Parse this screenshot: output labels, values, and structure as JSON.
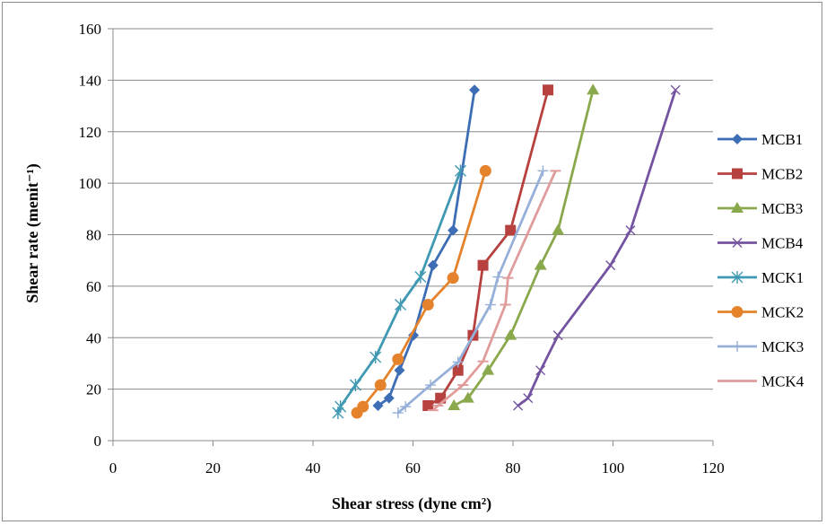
{
  "chart_data": {
    "type": "line",
    "title": "",
    "xlabel": "Shear stress (dyne cm²)",
    "ylabel": "Shear rate (menit⁻¹)",
    "xlim": [
      0,
      120
    ],
    "ylim": [
      0,
      160
    ],
    "xticks": [
      "0",
      "20",
      "40",
      "60",
      "80",
      "100",
      "120"
    ],
    "yticks": [
      "0",
      "20",
      "40",
      "60",
      "80",
      "100",
      "120",
      "140",
      "160"
    ],
    "grid": "horizontal",
    "legend": "right",
    "series": [
      {
        "name": "MCB1",
        "color": "#3d6db5",
        "marker": "diamond",
        "points": [
          [
            53.0,
            13.6
          ],
          [
            55.2,
            16.5
          ],
          [
            57.3,
            27.3
          ],
          [
            60.1,
            40.9
          ],
          [
            64.0,
            68.1
          ],
          [
            68.0,
            81.7
          ],
          [
            72.3,
            136.2
          ]
        ]
      },
      {
        "name": "MCB2",
        "color": "#b7413f",
        "marker": "square",
        "points": [
          [
            63.0,
            13.6
          ],
          [
            65.5,
            16.5
          ],
          [
            69.0,
            27.3
          ],
          [
            72.0,
            40.9
          ],
          [
            74.0,
            68.1
          ],
          [
            79.5,
            81.7
          ],
          [
            87.0,
            136.2
          ]
        ]
      },
      {
        "name": "MCB3",
        "color": "#8aa84c",
        "marker": "triangle",
        "points": [
          [
            68.2,
            13.6
          ],
          [
            71.0,
            16.5
          ],
          [
            75.0,
            27.3
          ],
          [
            79.5,
            40.9
          ],
          [
            85.5,
            68.1
          ],
          [
            89.0,
            81.7
          ],
          [
            96.0,
            136.2
          ]
        ]
      },
      {
        "name": "MCB4",
        "color": "#7454a0",
        "marker": "x",
        "points": [
          [
            81.0,
            13.6
          ],
          [
            83.0,
            16.5
          ],
          [
            85.5,
            27.3
          ],
          [
            89.0,
            40.9
          ],
          [
            99.5,
            68.1
          ],
          [
            103.5,
            81.7
          ],
          [
            112.5,
            136.2
          ]
        ]
      },
      {
        "name": "MCK1",
        "color": "#3f99b3",
        "marker": "asterisk",
        "points": [
          [
            45.0,
            10.8
          ],
          [
            45.5,
            13.2
          ],
          [
            48.5,
            21.6
          ],
          [
            52.5,
            32.4
          ],
          [
            57.5,
            52.8
          ],
          [
            61.5,
            63.6
          ],
          [
            69.5,
            104.8
          ]
        ]
      },
      {
        "name": "MCK2",
        "color": "#e4832c",
        "marker": "circle",
        "points": [
          [
            48.8,
            10.8
          ],
          [
            50.0,
            13.2
          ],
          [
            53.5,
            21.6
          ],
          [
            57.0,
            31.6
          ],
          [
            63.0,
            52.8
          ],
          [
            68.0,
            63.2
          ],
          [
            74.5,
            104.8
          ]
        ]
      },
      {
        "name": "MCK3",
        "color": "#96b0d9",
        "marker": "plus",
        "points": [
          [
            57.0,
            10.8
          ],
          [
            58.5,
            13.2
          ],
          [
            63.5,
            21.6
          ],
          [
            69.0,
            30.5
          ],
          [
            75.5,
            52.8
          ],
          [
            77.0,
            63.6
          ],
          [
            86.0,
            104.8
          ]
        ]
      },
      {
        "name": "MCK4",
        "color": "#e09c9a",
        "marker": "dash",
        "points": [
          [
            64.0,
            11.8
          ],
          [
            65.0,
            13.6
          ],
          [
            70.0,
            21.6
          ],
          [
            74.0,
            30.8
          ],
          [
            78.5,
            52.8
          ],
          [
            79.0,
            63.2
          ],
          [
            88.5,
            104.8
          ]
        ]
      }
    ]
  }
}
